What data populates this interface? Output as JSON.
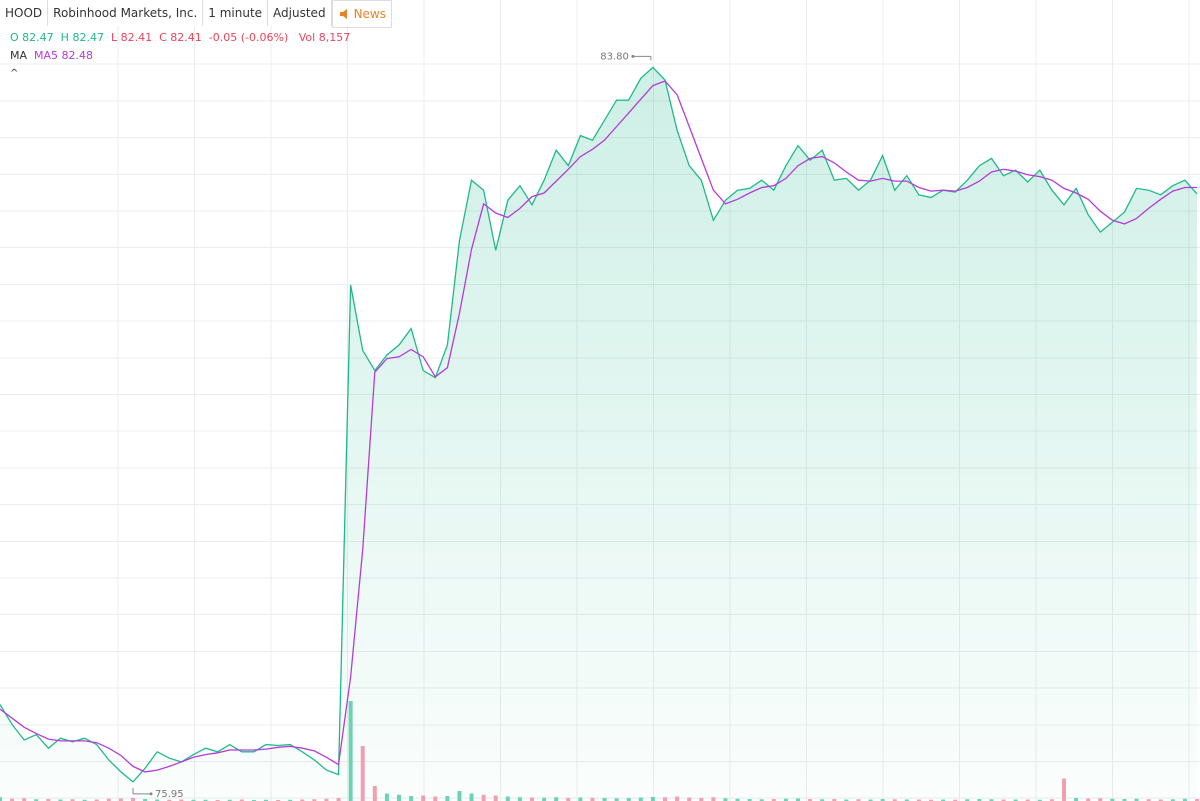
{
  "toolbar": {
    "symbol": "HOOD",
    "name": "Robinhood Markets, Inc.",
    "interval": "1 minute",
    "adjust": "Adjusted",
    "news": "News"
  },
  "quote": {
    "o_label": "O",
    "open": 82.47,
    "h_label": "H",
    "high": 82.47,
    "l_label": "L",
    "low": 82.41,
    "c_label": "C",
    "close": 82.41,
    "change": "-0.05 (-0.06%)",
    "vol_label": "Vol",
    "volume": "8,157"
  },
  "indicator": {
    "label": "MA",
    "name": "MA5",
    "value": 82.48
  },
  "collapse": "^",
  "chart_data": {
    "type": "line",
    "ylim": [
      75.74,
      84.54
    ],
    "series": [
      {
        "color": "#1fb88c",
        "values": [
          76.8,
          76.58,
          76.41,
          76.47,
          76.32,
          76.43,
          76.39,
          76.43,
          76.36,
          76.19,
          76.06,
          75.95,
          76.1,
          76.28,
          76.21,
          76.17,
          76.25,
          76.32,
          76.28,
          76.36,
          76.28,
          76.28,
          76.36,
          76.35,
          76.36,
          76.28,
          76.19,
          76.08,
          76.03,
          81.41,
          80.69,
          80.47,
          80.64,
          80.75,
          80.93,
          80.47,
          80.39,
          80.75,
          81.9,
          82.56,
          82.45,
          81.79,
          82.34,
          82.5,
          82.29,
          82.56,
          82.89,
          82.72,
          83.05,
          83.0,
          83.22,
          83.44,
          83.44,
          83.68,
          83.8,
          83.66,
          83.11,
          82.72,
          82.56,
          82.12,
          82.34,
          82.45,
          82.47,
          82.56,
          82.45,
          82.72,
          82.94,
          82.78,
          82.89,
          82.56,
          82.58,
          82.45,
          82.56,
          82.83,
          82.45,
          82.61,
          82.4,
          82.37,
          82.45,
          82.43,
          82.56,
          82.72,
          82.8,
          82.61,
          82.67,
          82.54,
          82.67,
          82.45,
          82.29,
          82.47,
          82.18,
          81.99,
          82.1,
          82.21,
          82.47,
          82.45,
          82.4,
          82.5,
          82.56,
          82.41
        ]
      },
      {
        "name": "MA5",
        "color": "#b43cd8",
        "values": [
          76.75,
          76.65,
          76.55,
          76.48,
          76.42,
          76.4,
          76.4,
          76.4,
          76.38,
          76.32,
          76.24,
          76.12,
          76.06,
          76.08,
          76.12,
          76.17,
          76.22,
          76.25,
          76.27,
          76.3,
          76.3,
          76.3,
          76.31,
          76.33,
          76.34,
          76.32,
          76.29,
          76.22,
          76.14,
          77.1,
          78.5,
          80.45,
          80.6,
          80.62,
          80.7,
          80.62,
          80.4,
          80.5,
          81.1,
          81.8,
          82.3,
          82.2,
          82.15,
          82.25,
          82.38,
          82.42,
          82.55,
          82.68,
          82.82,
          82.9,
          83.0,
          83.15,
          83.3,
          83.45,
          83.6,
          83.65,
          83.5,
          83.15,
          82.8,
          82.45,
          82.3,
          82.35,
          82.42,
          82.48,
          82.5,
          82.58,
          82.72,
          82.8,
          82.82,
          82.75,
          82.65,
          82.56,
          82.55,
          82.58,
          82.55,
          82.55,
          82.48,
          82.44,
          82.45,
          82.44,
          82.48,
          82.55,
          82.65,
          82.68,
          82.66,
          82.62,
          82.6,
          82.56,
          82.47,
          82.42,
          82.35,
          82.22,
          82.12,
          82.08,
          82.14,
          82.25,
          82.35,
          82.44,
          82.48,
          82.48
        ]
      }
    ],
    "volume": {
      "ylim": [
        0,
        400000
      ],
      "up_color": "#6fd3b4",
      "down_color": "#f4a0b0",
      "values": [
        15000,
        9000,
        11000,
        7000,
        8000,
        6000,
        7000,
        5000,
        6000,
        9000,
        10000,
        12000,
        8000,
        6000,
        5000,
        6000,
        5000,
        5000,
        4000,
        5000,
        6000,
        4000,
        5000,
        4000,
        5000,
        6000,
        7000,
        9000,
        12000,
        400000,
        220000,
        60000,
        30000,
        25000,
        20000,
        22000,
        18000,
        20000,
        40000,
        30000,
        25000,
        22000,
        18000,
        15000,
        14000,
        13000,
        15000,
        12000,
        14000,
        13000,
        12000,
        11000,
        12000,
        14000,
        16000,
        15000,
        18000,
        14000,
        12000,
        15000,
        11000,
        9000,
        8000,
        7000,
        8000,
        9000,
        10000,
        8000,
        7000,
        8000,
        6000,
        7000,
        6000,
        8000,
        7000,
        6000,
        6000,
        5000,
        6000,
        5000,
        7000,
        8000,
        7000,
        6000,
        6000,
        6000,
        5000,
        7000,
        90000,
        12000,
        10000,
        11000,
        9000,
        8000,
        9000,
        7000,
        6000,
        7000,
        9000,
        8157
      ]
    },
    "max_label": {
      "value": 83.8,
      "label": "83.80"
    },
    "min_label": {
      "value": 75.95,
      "label": "75.95"
    }
  }
}
